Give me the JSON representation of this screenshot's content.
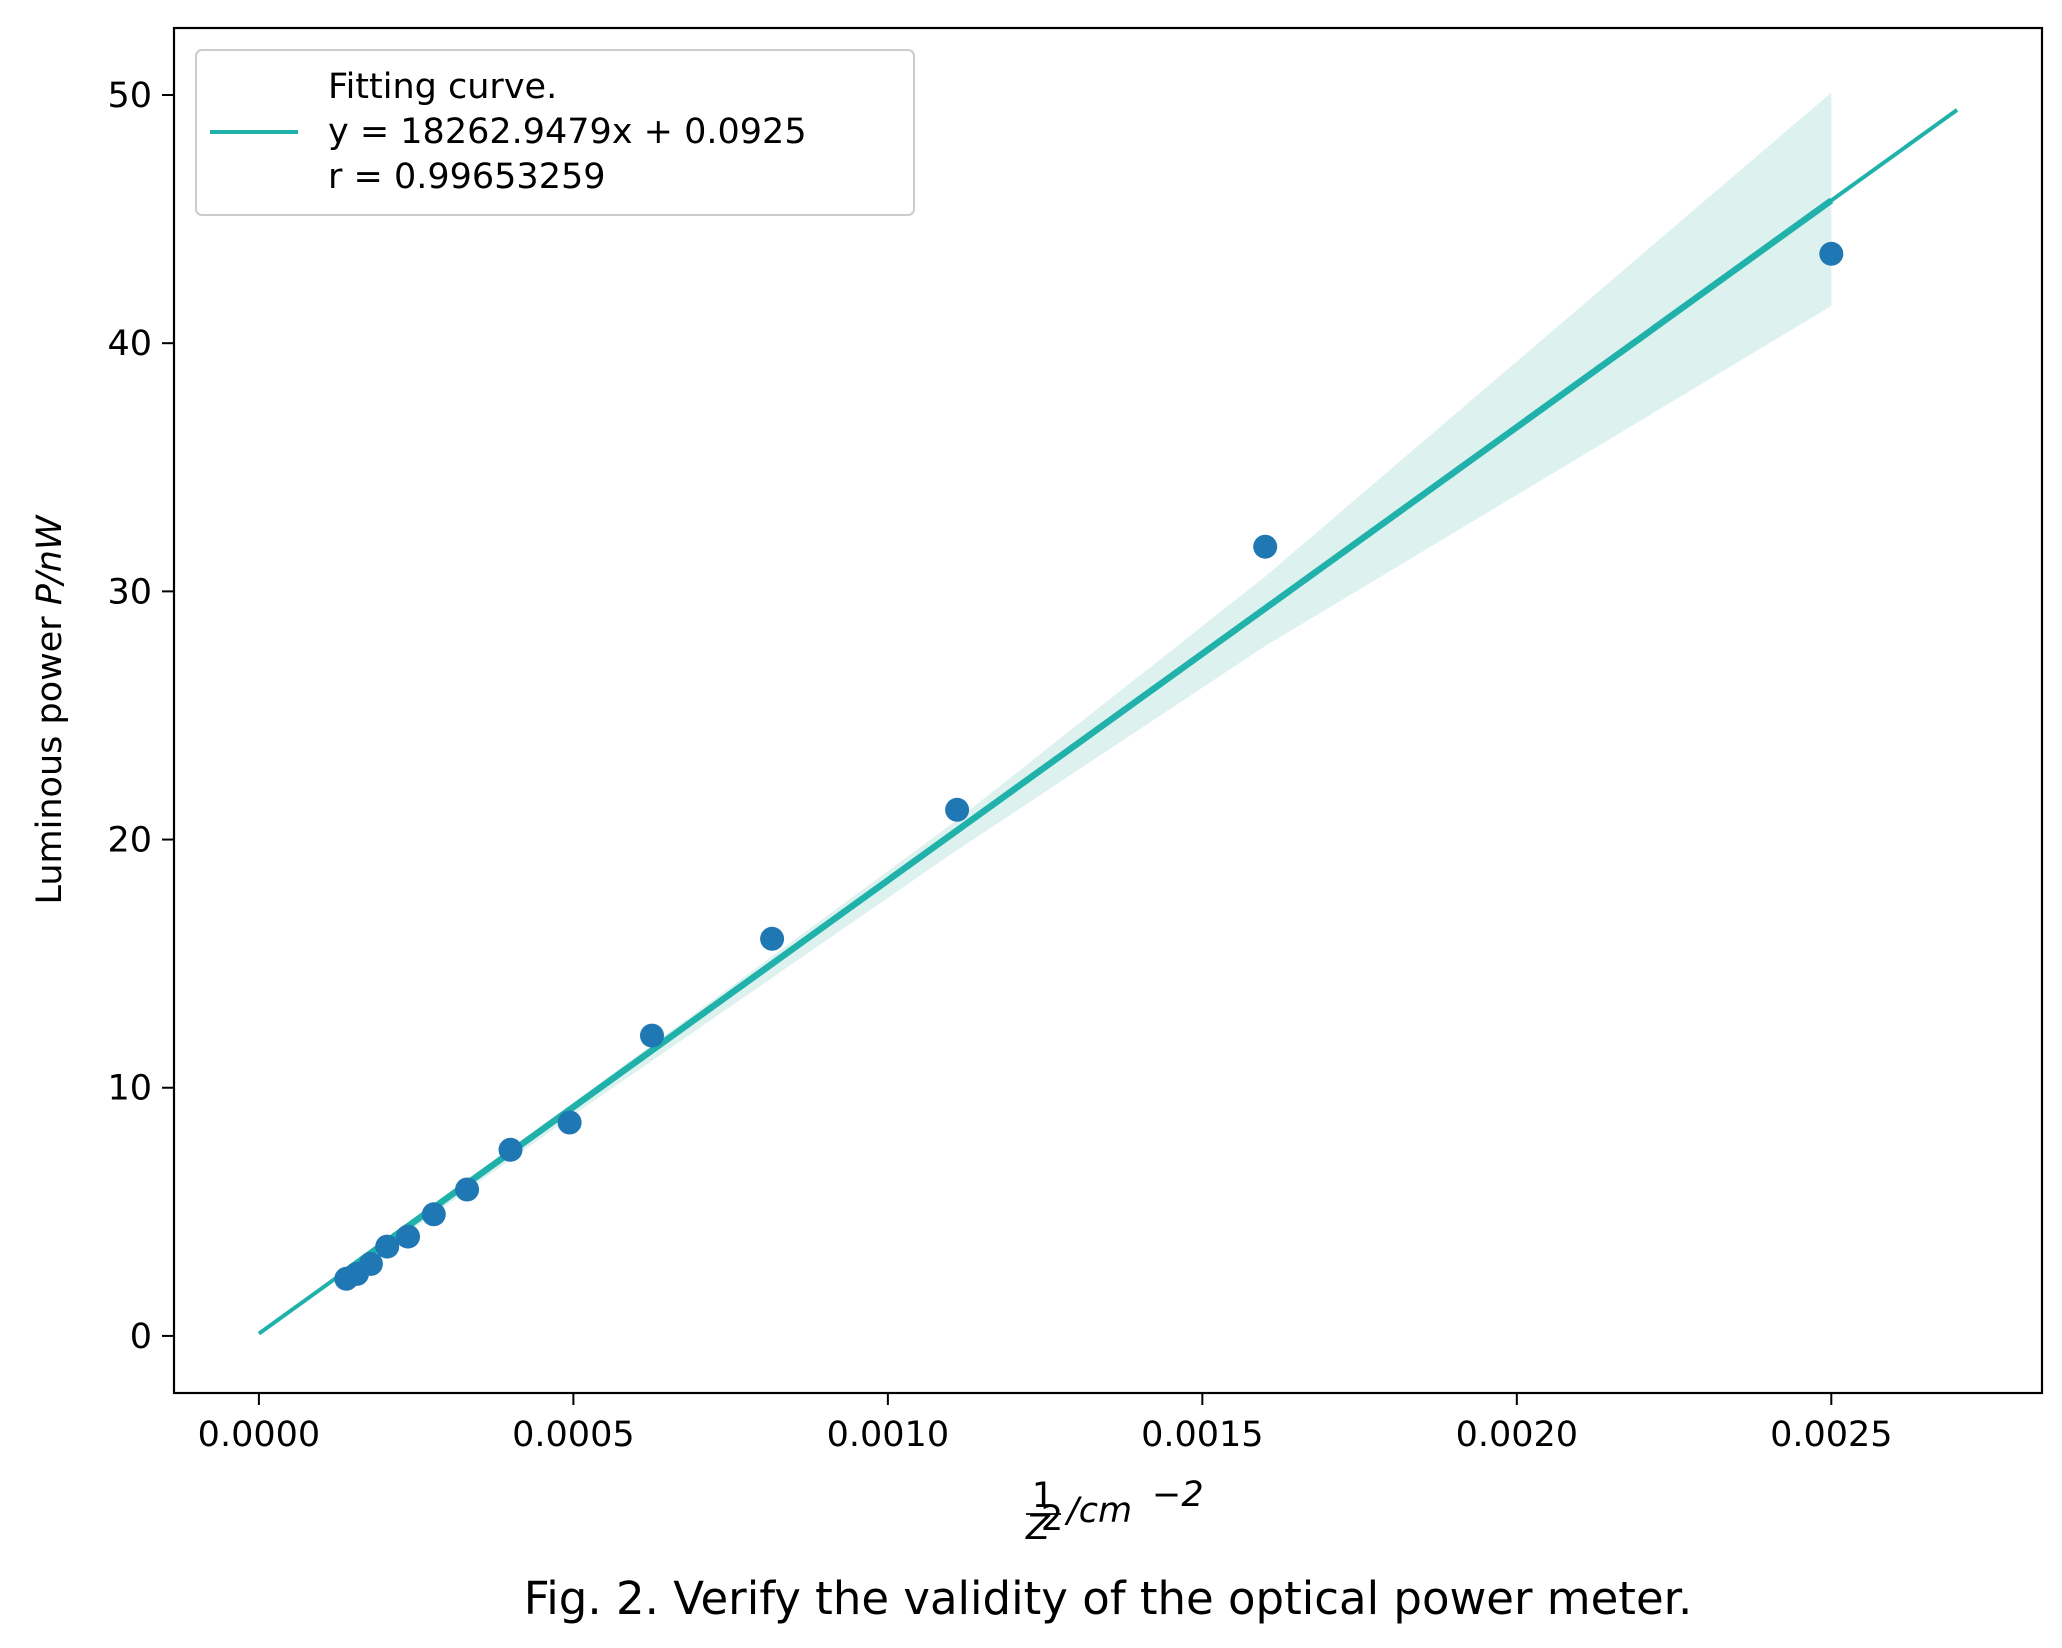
{
  "caption": "Fig. 2. Verify the validity of the optical power meter.",
  "chart_data": {
    "type": "scatter",
    "title": "",
    "xlabel": {
      "frac_num": "1",
      "frac_den": "Z",
      "frac_den_exp": "2",
      "unit": "/cm",
      "unit_exp": "−2"
    },
    "ylabel": {
      "prefix": "Luminous power ",
      "symbol": "P/nW"
    },
    "xlim": [
      -0.000135,
      0.002835
    ],
    "ylim": [
      -2.3,
      52.7
    ],
    "xticks": [
      0.0,
      0.0005,
      0.001,
      0.0015,
      0.002,
      0.0025
    ],
    "xtick_labels": [
      "0.0000",
      "0.0005",
      "0.0010",
      "0.0015",
      "0.0020",
      "0.0025"
    ],
    "yticks": [
      0,
      10,
      20,
      30,
      40,
      50
    ],
    "ytick_labels": [
      "0",
      "10",
      "20",
      "30",
      "40",
      "50"
    ],
    "grid": false,
    "legend_position": "top-left",
    "colors": {
      "points": "#1f77b4",
      "fit_line": "#20b2aa",
      "band": "#ddf1ef"
    },
    "series": [
      {
        "type": "scatter",
        "x": [
          0.0025,
          0.0016,
          0.00111,
          0.000816,
          0.000625,
          0.000494,
          0.0004,
          0.000331,
          0.000278,
          0.000237,
          0.000204,
          0.000178,
          0.000156,
          0.000139
        ],
        "y": [
          43.6,
          31.8,
          21.2,
          16.0,
          12.1,
          8.6,
          7.5,
          5.9,
          4.9,
          4.0,
          3.6,
          2.9,
          2.5,
          2.3
        ]
      },
      {
        "type": "line",
        "legend": [
          "Fitting curve.",
          "y = 18262.9479x + 0.0925",
          "r = 0.99653259"
        ],
        "slope": 18262.9479,
        "intercept": 0.0925,
        "x_range": [
          0.0,
          0.0027
        ],
        "fit_x_range": [
          0.000139,
          0.0025
        ],
        "band_x": [
          0.000139,
          0.0005,
          0.0011,
          0.0016,
          0.0025
        ],
        "band_upper": [
          2.7,
          9.4,
          20.6,
          30.6,
          50.1
        ],
        "band_lower": [
          2.4,
          8.9,
          19.4,
          27.8,
          41.5
        ]
      }
    ]
  }
}
